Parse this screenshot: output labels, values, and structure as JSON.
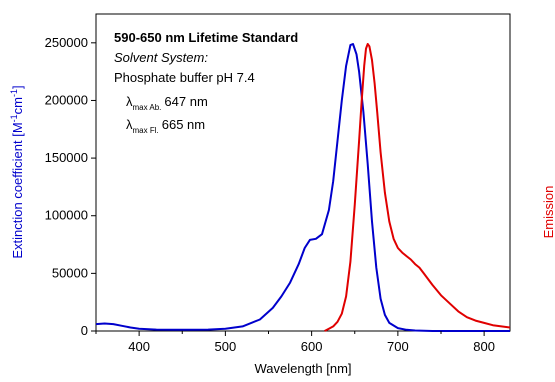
{
  "chart_data": {
    "type": "line",
    "annotations": {
      "title": "590-650 nm Lifetime Standard",
      "solvent_label": "Solvent System:",
      "solvent_value": "Phosphate buffer pH 7.4",
      "lambda_symbol": "λ",
      "abs_subscript": "max Ab.",
      "abs_value": "647 nm",
      "fl_subscript": "max Fl.",
      "fl_value": "665 nm"
    },
    "xlabel": "Wavelength [nm]",
    "ylabel": {
      "text": "Extinction coefficient [M",
      "sup1": "-1",
      "mid": "cm",
      "sup2": "-1",
      "end": "]"
    },
    "y2label": "Emission",
    "xlim": [
      350,
      830
    ],
    "ylim": [
      0,
      275000
    ],
    "xticks": [
      400,
      500,
      600,
      700,
      800
    ],
    "yticks": [
      0,
      50000,
      100000,
      150000,
      200000,
      250000
    ],
    "grid": false,
    "series": [
      {
        "color": "#0000cc",
        "points": [
          [
            350,
            6000
          ],
          [
            360,
            6500
          ],
          [
            370,
            6000
          ],
          [
            380,
            4500
          ],
          [
            390,
            3000
          ],
          [
            400,
            2000
          ],
          [
            420,
            1200
          ],
          [
            440,
            1000
          ],
          [
            460,
            1000
          ],
          [
            480,
            1200
          ],
          [
            500,
            2000
          ],
          [
            520,
            4000
          ],
          [
            540,
            10000
          ],
          [
            555,
            20000
          ],
          [
            565,
            30000
          ],
          [
            575,
            42000
          ],
          [
            585,
            58000
          ],
          [
            592,
            72000
          ],
          [
            598,
            79000
          ],
          [
            605,
            80000
          ],
          [
            612,
            84000
          ],
          [
            620,
            105000
          ],
          [
            625,
            130000
          ],
          [
            630,
            165000
          ],
          [
            635,
            200000
          ],
          [
            640,
            230000
          ],
          [
            645,
            248000
          ],
          [
            648,
            249000
          ],
          [
            652,
            240000
          ],
          [
            655,
            225000
          ],
          [
            660,
            190000
          ],
          [
            665,
            145000
          ],
          [
            670,
            95000
          ],
          [
            675,
            55000
          ],
          [
            680,
            28000
          ],
          [
            685,
            14000
          ],
          [
            690,
            7000
          ],
          [
            700,
            2500
          ],
          [
            710,
            1000
          ],
          [
            720,
            400
          ],
          [
            740,
            0
          ],
          [
            780,
            0
          ],
          [
            830,
            0
          ]
        ]
      },
      {
        "color": "#e00000",
        "points": [
          [
            615,
            0
          ],
          [
            620,
            2000
          ],
          [
            625,
            4000
          ],
          [
            630,
            8000
          ],
          [
            635,
            15000
          ],
          [
            640,
            30000
          ],
          [
            645,
            60000
          ],
          [
            650,
            110000
          ],
          [
            655,
            165000
          ],
          [
            658,
            200000
          ],
          [
            661,
            230000
          ],
          [
            663,
            245000
          ],
          [
            665,
            249000
          ],
          [
            667,
            247000
          ],
          [
            670,
            235000
          ],
          [
            673,
            215000
          ],
          [
            676,
            190000
          ],
          [
            680,
            155000
          ],
          [
            685,
            120000
          ],
          [
            690,
            95000
          ],
          [
            695,
            80000
          ],
          [
            700,
            72000
          ],
          [
            705,
            68000
          ],
          [
            710,
            65000
          ],
          [
            715,
            62000
          ],
          [
            720,
            58000
          ],
          [
            725,
            55000
          ],
          [
            730,
            50000
          ],
          [
            740,
            40000
          ],
          [
            750,
            31000
          ],
          [
            760,
            24000
          ],
          [
            770,
            17000
          ],
          [
            780,
            12000
          ],
          [
            790,
            9000
          ],
          [
            800,
            7000
          ],
          [
            810,
            5000
          ],
          [
            820,
            4000
          ],
          [
            830,
            3000
          ]
        ]
      }
    ]
  }
}
